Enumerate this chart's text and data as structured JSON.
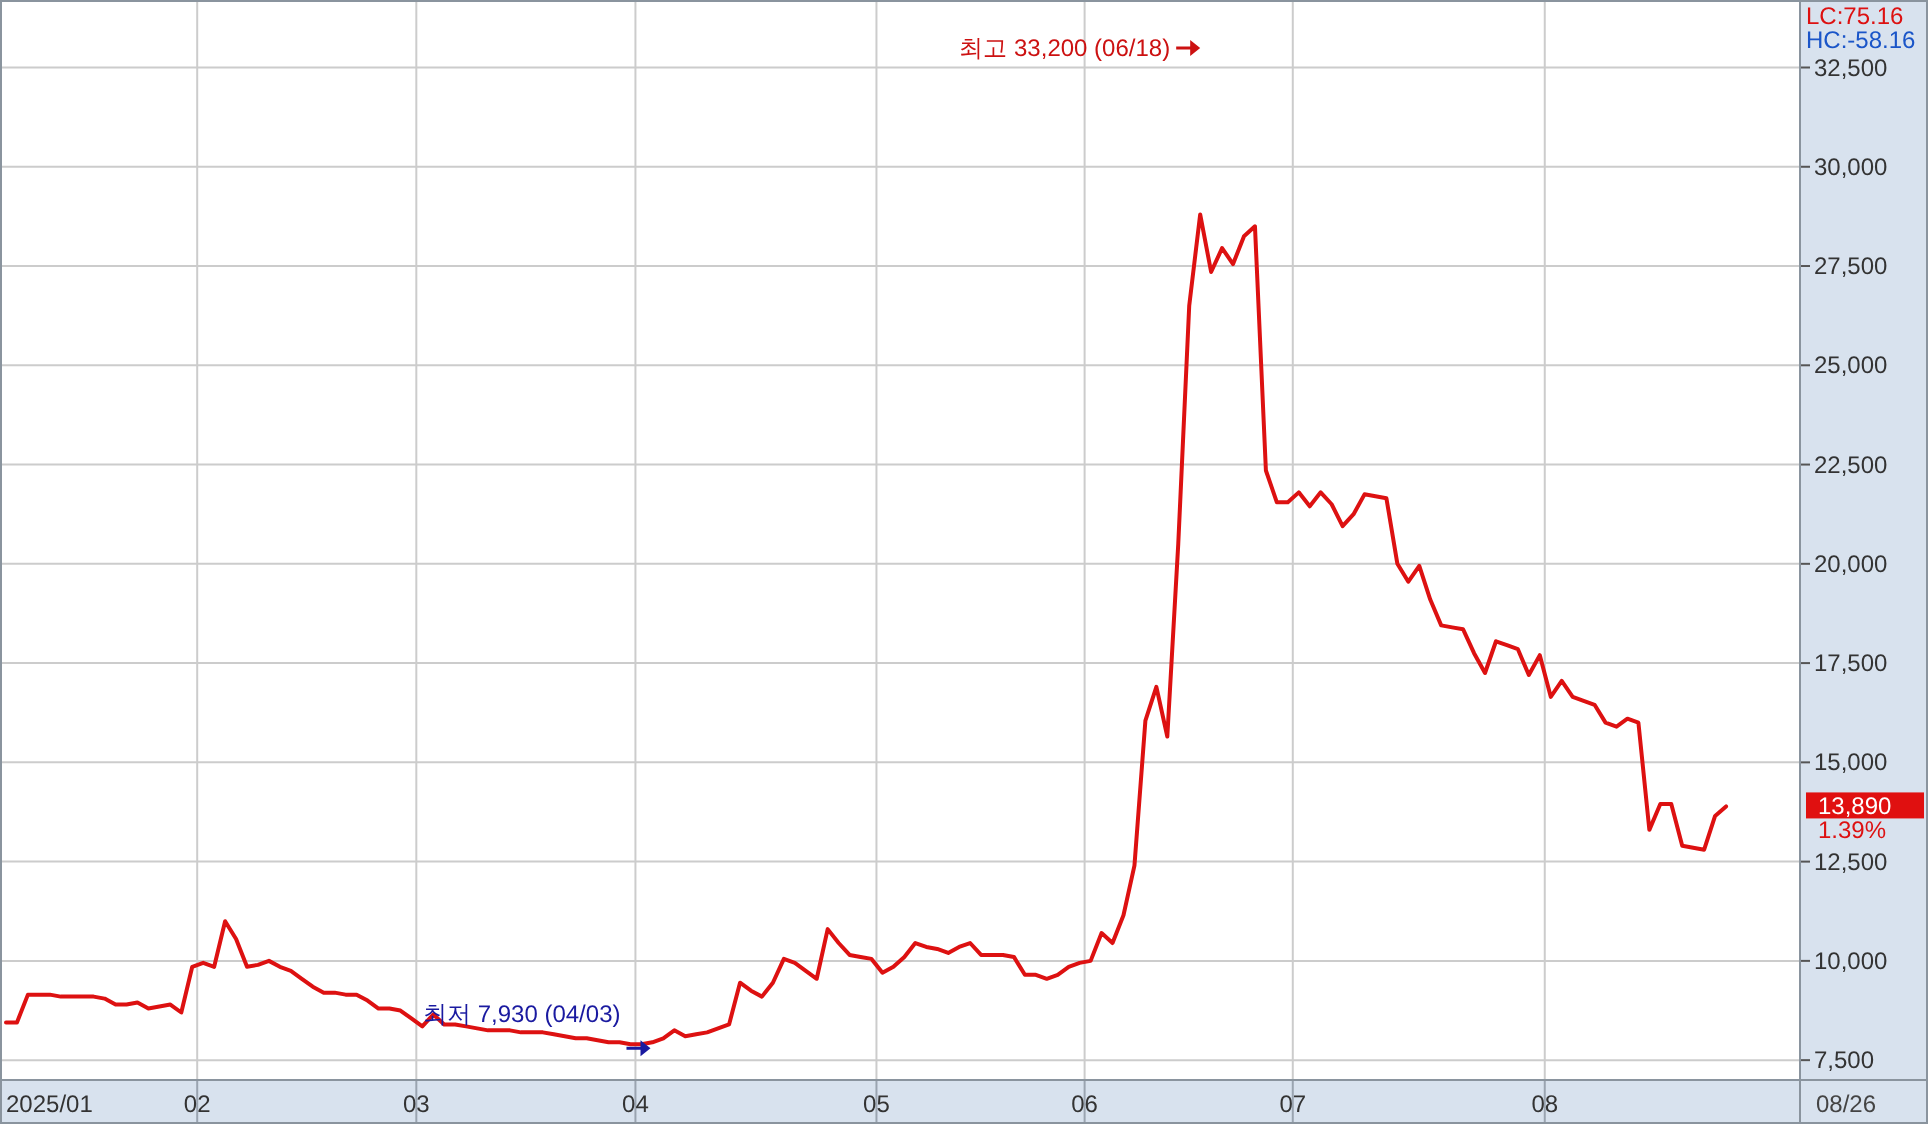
{
  "chart_data": {
    "type": "line",
    "categories": [
      null,
      null,
      null,
      null,
      null,
      null,
      null,
      null,
      null,
      null,
      null,
      null,
      null,
      null,
      null,
      null,
      null,
      null,
      "02",
      null,
      null,
      null,
      null,
      null,
      null,
      null,
      null,
      null,
      null,
      null,
      null,
      null,
      null,
      null,
      null,
      null,
      null,
      null,
      "03",
      null,
      null,
      null,
      null,
      null,
      null,
      null,
      null,
      null,
      null,
      null,
      null,
      null,
      null,
      null,
      null,
      null,
      null,
      null,
      "04",
      null,
      null,
      null,
      null,
      null,
      null,
      null,
      null,
      null,
      null,
      null,
      null,
      null,
      null,
      null,
      null,
      null,
      null,
      null,
      null,
      null,
      "05",
      null,
      null,
      null,
      null,
      null,
      null,
      null,
      null,
      null,
      null,
      null,
      null,
      null,
      null,
      null,
      null,
      null,
      null,
      "06",
      null,
      null,
      null,
      null,
      null,
      null,
      null,
      null,
      null,
      null,
      null,
      null,
      null,
      null,
      null,
      null,
      null,
      null,
      "07",
      null,
      null,
      null,
      null,
      null,
      null,
      null,
      null,
      null,
      null,
      null,
      null,
      null,
      null,
      null,
      null,
      null,
      null,
      null,
      null,
      null,
      null,
      "08",
      null,
      null,
      null,
      null,
      null,
      null,
      null,
      null,
      null,
      null,
      null,
      null,
      null,
      null,
      null,
      null
    ],
    "series": [
      {
        "color": "#dd1111",
        "values": [
          8450,
          8450,
          9150,
          9150,
          9150,
          9100,
          9100,
          9100,
          9100,
          9050,
          8900,
          8900,
          8950,
          8800,
          8850,
          8900,
          8700,
          9850,
          9950,
          9850,
          11000,
          10550,
          9850,
          9900,
          10000,
          9850,
          9750,
          9550,
          9350,
          9200,
          9200,
          9150,
          9150,
          9000,
          8800,
          8800,
          8750,
          8550,
          8350,
          8650,
          8400,
          8400,
          8350,
          8300,
          8250,
          8250,
          8250,
          8200,
          8200,
          8200,
          8150,
          8100,
          8050,
          8050,
          8000,
          7950,
          7950,
          7900,
          7900,
          7950,
          8050,
          8250,
          8100,
          8150,
          8200,
          8300,
          8400,
          9450,
          9250,
          9100,
          9450,
          10050,
          9950,
          9750,
          9550,
          10800,
          10450,
          10150,
          10100,
          10050,
          9700,
          9850,
          10100,
          10450,
          10350,
          10300,
          10200,
          10350,
          10450,
          10150,
          10150,
          10150,
          10100,
          9650,
          9650,
          9550,
          9650,
          9850,
          9950,
          10000,
          10700,
          10450,
          11150,
          12400,
          16050,
          16900,
          15650,
          20500,
          26500,
          28800,
          27350,
          27950,
          27550,
          28250,
          28500,
          22350,
          21550,
          21550,
          21800,
          21450,
          21800,
          21500,
          20950,
          21250,
          21750,
          21700,
          21650,
          20000,
          19550,
          19950,
          19100,
          18450,
          18400,
          18350,
          17750,
          17250,
          18050,
          17950,
          17850,
          17200,
          17700,
          16650,
          17050,
          16650,
          16550,
          16450,
          16000,
          15900,
          16100,
          16000,
          13300,
          13950,
          13950,
          12900,
          12850,
          12800,
          13650,
          13890
        ]
      }
    ],
    "ylim": [
      7000,
      34200
    ],
    "yticks": [
      {
        "value": 7500,
        "label": "7,500"
      },
      {
        "value": 10000,
        "label": "10,000"
      },
      {
        "value": 12500,
        "label": "12,500"
      },
      {
        "value": 15000,
        "label": "15,000"
      },
      {
        "value": 17500,
        "label": "17,500"
      },
      {
        "value": 20000,
        "label": "20,000"
      },
      {
        "value": 22500,
        "label": "22,500"
      },
      {
        "value": 25000,
        "label": "25,000"
      },
      {
        "value": 27500,
        "label": "27,500"
      },
      {
        "value": 30000,
        "label": "30,000"
      },
      {
        "value": 32500,
        "label": "32,500"
      }
    ],
    "grid": true,
    "annotations": [
      "최고 33,200 (06/18)",
      "최저 7,930 (04/03)",
      "13,890",
      "LC:75.16",
      "HC:-58.16",
      "1.39%",
      "08/26",
      "2025/01"
    ]
  }
}
